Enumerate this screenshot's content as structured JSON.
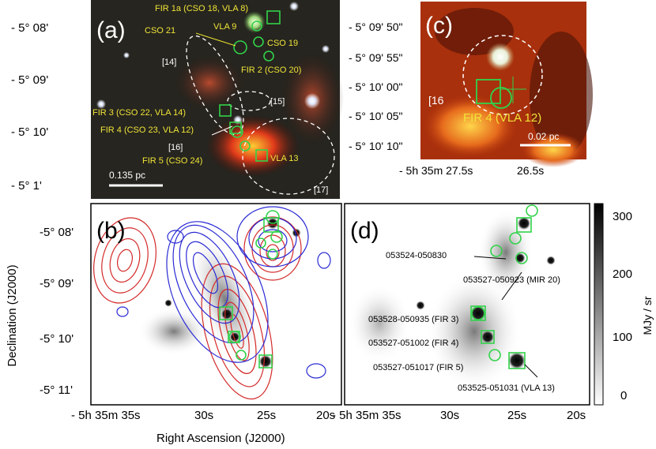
{
  "panels": {
    "a": {
      "tag": "(a)",
      "dec_ticks": [
        "- 5° 08'",
        "- 5° 09'",
        "- 5° 10'",
        "- 5° 1'"
      ],
      "labels": {
        "fir1": "FIR 1a (CSO 18, VLA 8)",
        "vla9": "VLA 9",
        "cso21": "CSO 21",
        "cso19": "CSO 19",
        "fir2": "FIR 2 (CSO 20)",
        "r14": "[14]",
        "r15": "[15]",
        "fir3": "FIR 3 (CSO 22, VLA 14)",
        "fir4": "FIR 4 (CSO 23, VLA 12)",
        "r16": "[16]",
        "fir5": "FIR 5 (CSO 24)",
        "vla13": "VLA 13",
        "r17": "[17]"
      },
      "scalebar": "0.135 pc"
    },
    "c": {
      "tag": "(c)",
      "dec_ticks": [
        "- 5° 09' 50\"",
        "- 5° 09' 55\"",
        "- 5° 10' 00\"",
        "- 5° 10' 05\"",
        "- 5° 10' 10\""
      ],
      "ra_ticks": [
        "- 5h 35m 27.5s",
        "26.5s"
      ],
      "labels": {
        "r16": "[16",
        "fir4": "FIR 4 (VLA 12)"
      },
      "scalebar": "0.02 pc"
    },
    "b": {
      "tag": "(b)",
      "dec_ticks": [
        "-5° 08'",
        "-5° 09'",
        "-5° 10'",
        "-5° 11'"
      ]
    },
    "d": {
      "tag": "(d)",
      "labels": {
        "s1": "053524-050830",
        "s2": "053527-050923 (MIR 20)",
        "s3": "053528-050935 (FIR 3)",
        "s4": "053527-051002 (FIR 4)",
        "s5": "053527-051017 (FIR 5)",
        "s6": "053525-051031 (VLA 13)"
      }
    }
  },
  "axes": {
    "xlabel": "Right Ascension (J2000)",
    "ylabel": "Declination (J2000)",
    "ra_ticks": [
      "- 5h 35m 35s",
      "30s",
      "25s",
      "20s"
    ]
  },
  "colorbar": {
    "unit": "MJy / sr",
    "ticks": [
      "300",
      "200",
      "100",
      "0"
    ]
  }
}
